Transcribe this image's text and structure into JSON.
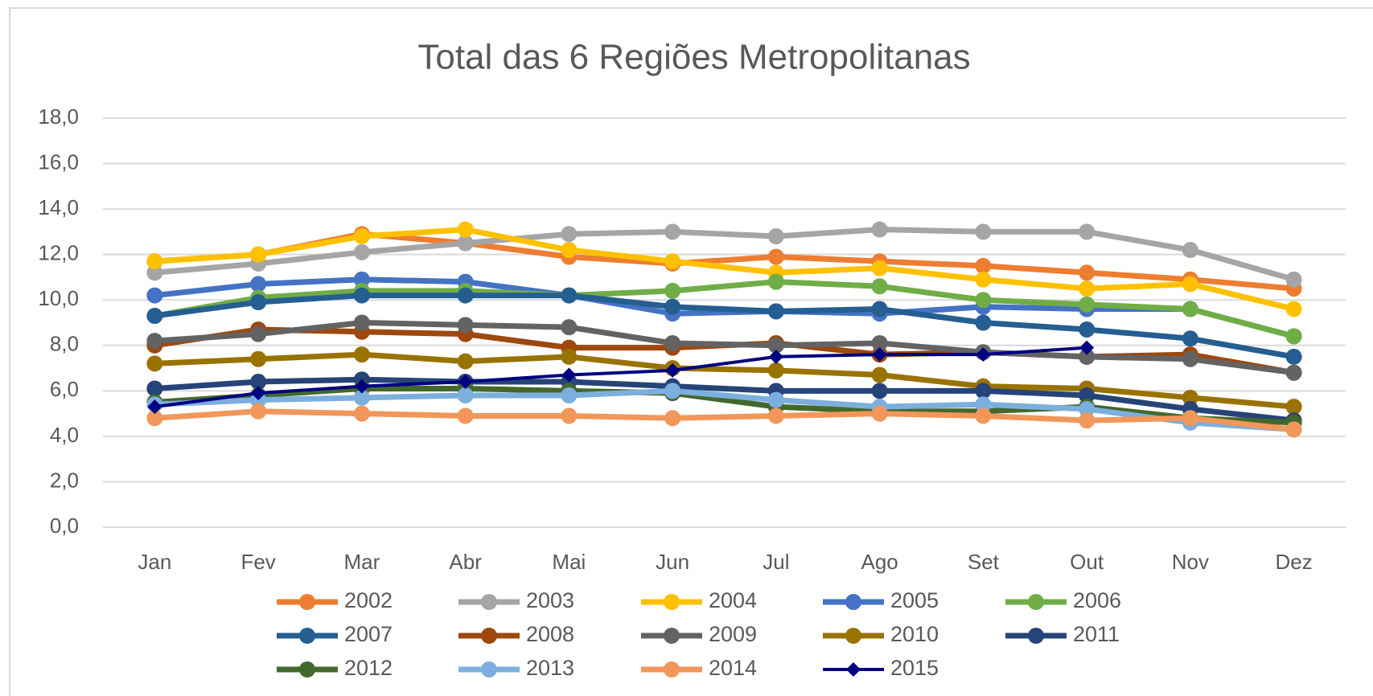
{
  "chart_data": {
    "type": "line",
    "title": "Total das 6 Regiões Metropolitanas",
    "categories": [
      "Jan",
      "Fev",
      "Mar",
      "Abr",
      "Mai",
      "Jun",
      "Jul",
      "Ago",
      "Set",
      "Out",
      "Nov",
      "Dez"
    ],
    "ylim": [
      0,
      18
    ],
    "yticks": [
      {
        "value": 0,
        "label": "0,0"
      },
      {
        "value": 2,
        "label": "2,0"
      },
      {
        "value": 4,
        "label": "4,0"
      },
      {
        "value": 6,
        "label": "6,0"
      },
      {
        "value": 8,
        "label": "8,0"
      },
      {
        "value": 10,
        "label": "10,0"
      },
      {
        "value": 12,
        "label": "12,0"
      },
      {
        "value": 14,
        "label": "14,0"
      },
      {
        "value": 16,
        "label": "16,0"
      },
      {
        "value": 18,
        "label": "18,0"
      }
    ],
    "grid": true,
    "legend": "bottom",
    "series": [
      {
        "name": "2002",
        "color": "#ED7D31",
        "marker": "circle",
        "values": [
          11.7,
          12.0,
          12.9,
          12.5,
          11.9,
          11.6,
          11.9,
          11.7,
          11.5,
          11.2,
          10.9,
          10.5
        ]
      },
      {
        "name": "2003",
        "color": "#A5A5A5",
        "marker": "circle",
        "values": [
          11.2,
          11.6,
          12.1,
          12.5,
          12.9,
          13.0,
          12.8,
          13.1,
          13.0,
          13.0,
          12.2,
          10.9
        ]
      },
      {
        "name": "2004",
        "color": "#FFC000",
        "marker": "circle",
        "values": [
          11.7,
          12.0,
          12.8,
          13.1,
          12.2,
          11.7,
          11.2,
          11.4,
          10.9,
          10.5,
          10.7,
          9.6
        ]
      },
      {
        "name": "2005",
        "color": "#4472C4",
        "marker": "circle",
        "values": [
          10.2,
          10.7,
          10.9,
          10.8,
          10.2,
          9.4,
          9.5,
          9.4,
          9.7,
          9.6,
          9.6,
          8.4
        ]
      },
      {
        "name": "2006",
        "color": "#70AD47",
        "marker": "circle",
        "values": [
          9.3,
          10.1,
          10.4,
          10.4,
          10.2,
          10.4,
          10.8,
          10.6,
          10.0,
          9.8,
          9.6,
          8.4
        ]
      },
      {
        "name": "2007",
        "color": "#255E91",
        "marker": "circle",
        "values": [
          9.3,
          9.9,
          10.2,
          10.2,
          10.2,
          9.7,
          9.5,
          9.6,
          9.0,
          8.7,
          8.3,
          7.5
        ]
      },
      {
        "name": "2008",
        "color": "#9E480E",
        "marker": "circle",
        "values": [
          8.0,
          8.7,
          8.6,
          8.5,
          7.9,
          7.9,
          8.1,
          7.6,
          7.7,
          7.5,
          7.6,
          6.8
        ]
      },
      {
        "name": "2009",
        "color": "#636363",
        "marker": "circle",
        "values": [
          8.2,
          8.5,
          9.0,
          8.9,
          8.8,
          8.1,
          8.0,
          8.1,
          7.7,
          7.5,
          7.4,
          6.8
        ]
      },
      {
        "name": "2010",
        "color": "#997300",
        "marker": "circle",
        "values": [
          7.2,
          7.4,
          7.6,
          7.3,
          7.5,
          7.0,
          6.9,
          6.7,
          6.2,
          6.1,
          5.7,
          5.3
        ]
      },
      {
        "name": "2011",
        "color": "#264478",
        "marker": "circle",
        "values": [
          6.1,
          6.4,
          6.5,
          6.4,
          6.4,
          6.2,
          6.0,
          6.0,
          6.0,
          5.8,
          5.2,
          4.7
        ]
      },
      {
        "name": "2012",
        "color": "#43682B",
        "marker": "circle",
        "values": [
          5.5,
          5.8,
          6.1,
          6.1,
          6.0,
          5.9,
          5.3,
          5.1,
          5.1,
          5.3,
          4.8,
          4.6
        ]
      },
      {
        "name": "2013",
        "color": "#7CAFDD",
        "marker": "circle",
        "values": [
          5.4,
          5.6,
          5.7,
          5.8,
          5.8,
          6.0,
          5.6,
          5.3,
          5.4,
          5.2,
          4.6,
          4.3
        ]
      },
      {
        "name": "2014",
        "color": "#F1975A",
        "marker": "circle",
        "values": [
          4.8,
          5.1,
          5.0,
          4.9,
          4.9,
          4.8,
          4.9,
          5.0,
          4.9,
          4.7,
          4.8,
          4.3
        ]
      },
      {
        "name": "2015",
        "color": "#000080",
        "marker": "diamond",
        "values": [
          5.3,
          5.9,
          6.2,
          6.4,
          6.7,
          6.9,
          7.5,
          7.6,
          7.6,
          7.9,
          null,
          null
        ]
      }
    ]
  }
}
